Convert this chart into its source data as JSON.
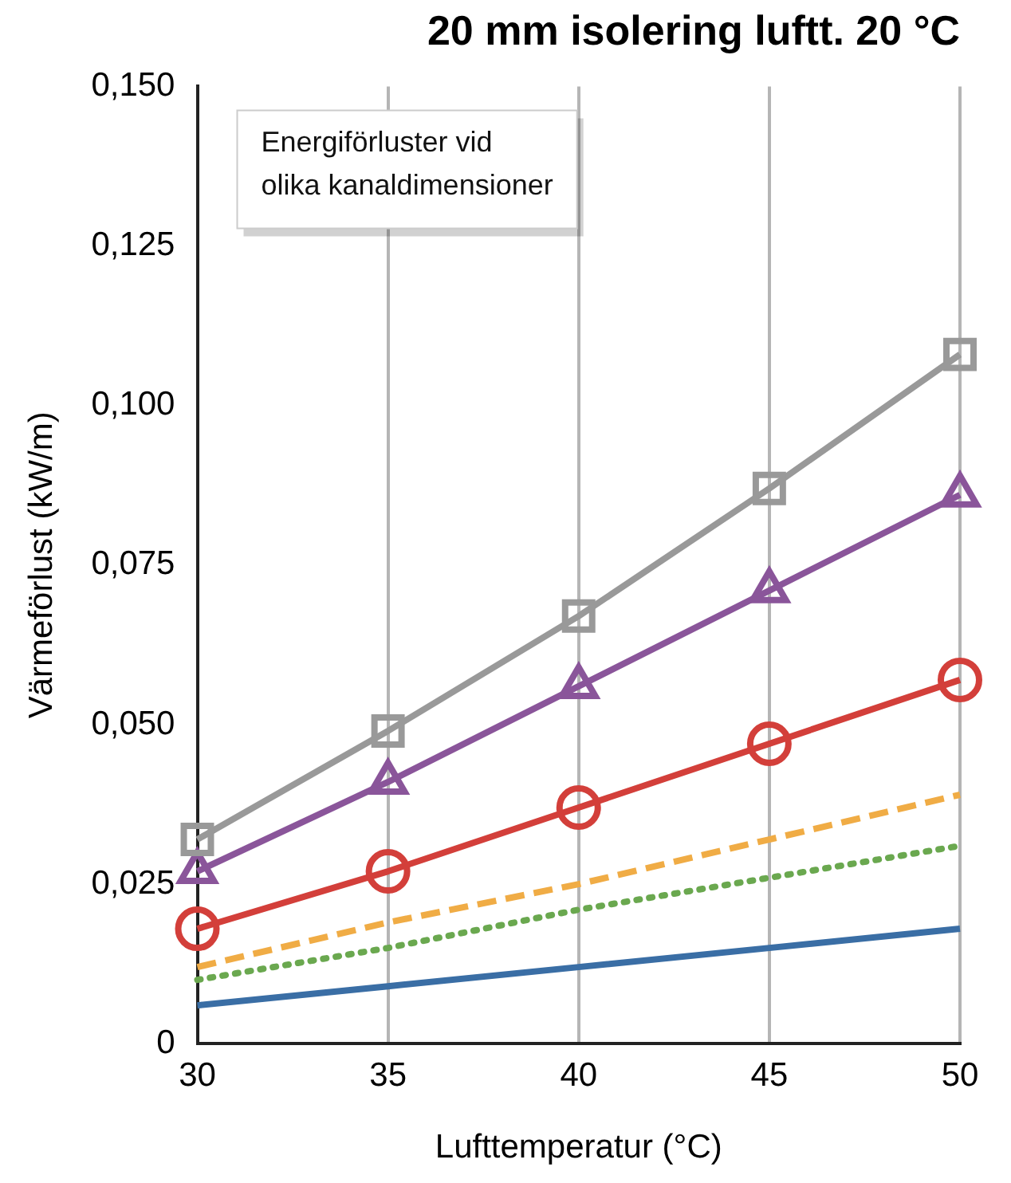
{
  "chart_data": {
    "type": "line",
    "title": "20 mm isolering luftt. 20 °C",
    "xlabel": "Lufttemperatur (°C)",
    "ylabel": "Värmeförlust (kW/m)",
    "annotations": [
      "Energiförluster vid\nolika kanaldimensioner"
    ],
    "x": [
      30,
      35,
      40,
      45,
      50
    ],
    "xlim": [
      30,
      50
    ],
    "xticks": [
      30,
      35,
      40,
      45,
      50
    ],
    "ylim": [
      0,
      0.15
    ],
    "yticks": [
      {
        "value": 0,
        "label": "0"
      },
      {
        "value": 0.025,
        "label": "0,025"
      },
      {
        "value": 0.05,
        "label": "0,050"
      },
      {
        "value": 0.075,
        "label": "0,075"
      },
      {
        "value": 0.1,
        "label": "0,100"
      },
      {
        "value": 0.125,
        "label": "0,125"
      },
      {
        "value": 0.15,
        "label": "0,150"
      }
    ],
    "grid": "x",
    "legend": false,
    "series": [
      {
        "color": "#999999",
        "marker": "square",
        "line_style": "solid",
        "values": [
          0.032,
          0.049,
          0.067,
          0.087,
          0.108
        ]
      },
      {
        "color": "#8a559a",
        "marker": "triangle",
        "line_style": "solid",
        "values": [
          0.027,
          0.041,
          0.056,
          0.071,
          0.086
        ]
      },
      {
        "color": "#d33f3a",
        "marker": "circle",
        "line_style": "solid",
        "values": [
          0.018,
          0.027,
          0.037,
          0.047,
          0.057
        ]
      },
      {
        "color": "#f0ac45",
        "marker": "none",
        "line_style": "dashed",
        "values": [
          0.012,
          0.019,
          0.025,
          0.032,
          0.039
        ]
      },
      {
        "color": "#6aa84f",
        "marker": "none",
        "line_style": "dotted",
        "values": [
          0.01,
          0.015,
          0.021,
          0.026,
          0.031
        ]
      },
      {
        "color": "#3a6ea5",
        "marker": "none",
        "line_style": "solid",
        "values": [
          0.006,
          0.009,
          0.012,
          0.015,
          0.018
        ]
      }
    ]
  }
}
